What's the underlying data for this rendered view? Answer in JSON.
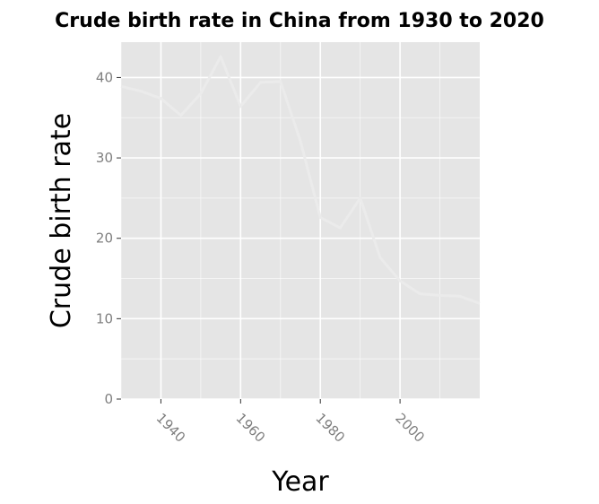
{
  "chart_data": {
    "type": "line",
    "title": "Crude birth rate in China from 1930 to 2020",
    "xlabel": "Year",
    "ylabel": "Crude birth rate",
    "xlim": [
      1930,
      2020
    ],
    "ylim": [
      0,
      40
    ],
    "x_ticks": [
      1940,
      1960,
      1980,
      2000
    ],
    "y_ticks": [
      0,
      10,
      20,
      30,
      40
    ],
    "grid": true,
    "legend": "none",
    "series": [
      {
        "x": [
          1930,
          1935,
          1940,
          1945,
          1950,
          1955,
          1960,
          1965,
          1970,
          1975,
          1980,
          1985,
          1990,
          1995,
          2000,
          2005,
          2010,
          2015,
          2020
        ],
        "y": [
          38.9,
          38.3,
          37.4,
          35.3,
          38.0,
          42.6,
          36.4,
          39.4,
          39.5,
          32.1,
          22.6,
          21.3,
          25.0,
          17.6,
          14.7,
          13.1,
          12.9,
          12.8,
          11.9
        ]
      }
    ],
    "colors": {
      "panel_background": "#e5e5e5",
      "grid": "#ffffff",
      "line": "#ebebeb",
      "tick": "#333333",
      "tick_label": "#7f7f7f"
    }
  }
}
